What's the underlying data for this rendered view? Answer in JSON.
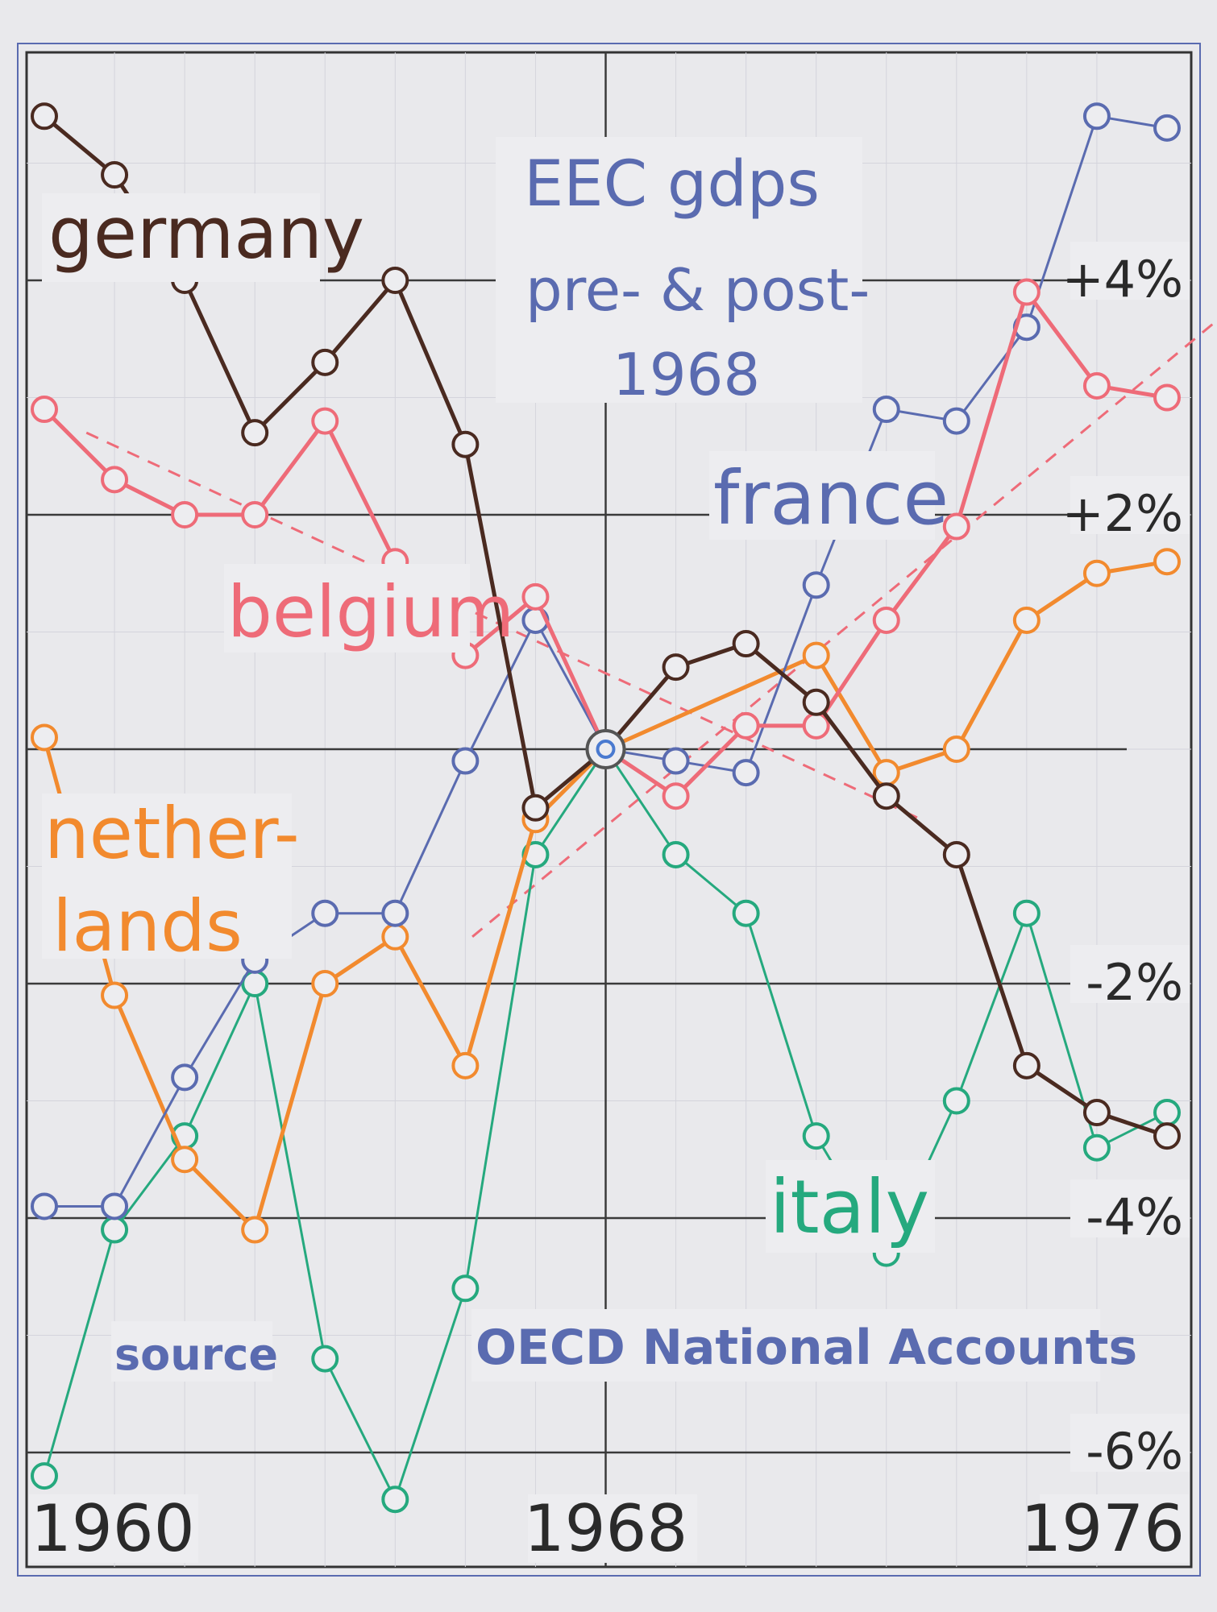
{
  "chart_data": {
    "type": "line",
    "title": "EEC gdps",
    "subtitle": [
      "pre- & post-",
      "1968"
    ],
    "xlabel": "",
    "ylabel": "",
    "x_tick_labels": [
      "1960",
      "1968",
      "1976"
    ],
    "y_tick_labels": [
      {
        "value": 4,
        "label": "+4%"
      },
      {
        "value": 2,
        "label": "+2%"
      },
      {
        "value": -2,
        "label": "-2%"
      },
      {
        "value": -4,
        "label": "-4%"
      },
      {
        "value": -6,
        "label": "-6%"
      }
    ],
    "xlim": [
      1960,
      1977
    ],
    "ylim": [
      -6.5,
      6.1
    ],
    "grid": true,
    "x": [
      1960,
      1961,
      1962,
      1963,
      1964,
      1965,
      1966,
      1967,
      1968,
      1969,
      1970,
      1971,
      1972,
      1973,
      1974,
      1975,
      1976
    ],
    "series": [
      {
        "name": "germany",
        "color": "#4a2a20",
        "values": [
          5.4,
          4.9,
          4.0,
          2.7,
          3.3,
          4.0,
          2.6,
          -0.5,
          0.0,
          0.7,
          0.9,
          0.4,
          -0.4,
          -0.9,
          -2.7,
          -3.1,
          -3.3
        ]
      },
      {
        "name": "france",
        "color": "#5a6bb0",
        "values": [
          -3.9,
          -3.9,
          -2.8,
          -1.8,
          -1.4,
          -1.4,
          -0.1,
          1.1,
          0.0,
          -0.1,
          -0.2,
          1.4,
          2.9,
          2.8,
          3.6,
          5.4,
          5.3
        ]
      },
      {
        "name": "belgium",
        "color": "#ee6b78",
        "values": [
          2.9,
          2.3,
          2.0,
          2.0,
          2.8,
          1.6,
          0.8,
          1.3,
          0.0,
          -0.4,
          0.2,
          0.2,
          1.1,
          1.9,
          3.9,
          3.1,
          3.0
        ]
      },
      {
        "name": "nether-\nlands",
        "color": "#f28a2e",
        "values": [
          0.1,
          -2.1,
          -3.5,
          -4.1,
          -2.0,
          -1.6,
          -2.7,
          -0.6,
          0.0,
          null,
          null,
          0.8,
          -0.2,
          0.0,
          1.1,
          1.5,
          1.6
        ]
      },
      {
        "name": "italy",
        "color": "#25a97e",
        "values": [
          -6.2,
          -4.1,
          -3.3,
          -2.0,
          -5.2,
          -6.4,
          -4.6,
          -0.9,
          0.0,
          -0.9,
          -1.4,
          -3.3,
          -4.3,
          -3.0,
          -1.4,
          -3.4,
          -3.1
        ]
      }
    ],
    "trend_lines": [
      {
        "series": "belgium",
        "from": [
          1960.6,
          2.7
        ],
        "to": [
          1972.5,
          -0.6
        ]
      },
      {
        "series": "belgium",
        "from": [
          1966.1,
          -1.6
        ],
        "to": [
          1977.0,
          3.8
        ]
      }
    ],
    "annotations": {
      "source_label": "source",
      "source_text": "OECD National Accounts"
    }
  }
}
